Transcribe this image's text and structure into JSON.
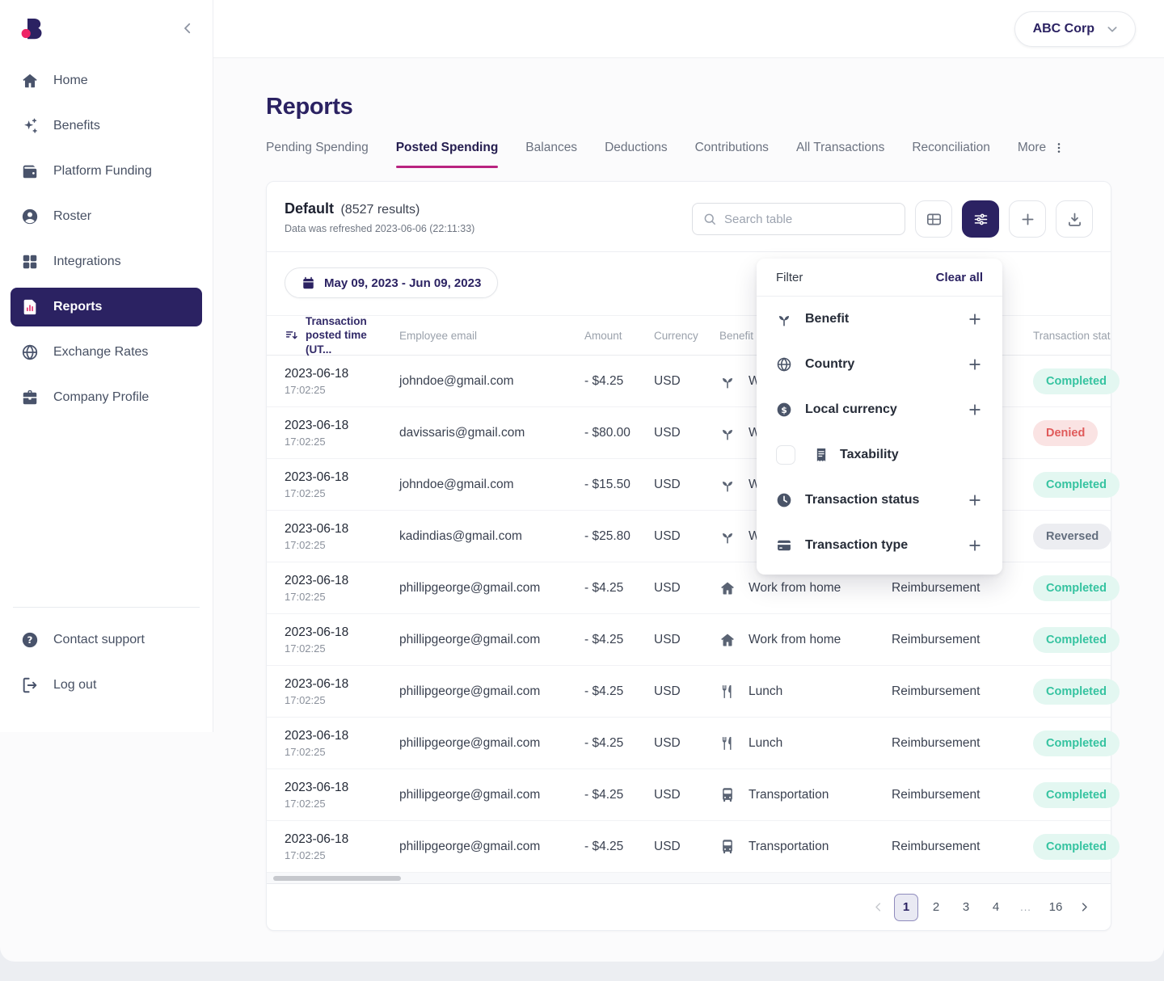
{
  "header": {
    "company": "ABC Corp"
  },
  "page": {
    "title": "Reports"
  },
  "sidebar": {
    "items": [
      {
        "icon": "home-icon",
        "label": "Home"
      },
      {
        "icon": "sparkles-icon",
        "label": "Benefits"
      },
      {
        "icon": "wallet-icon",
        "label": "Platform Funding"
      },
      {
        "icon": "user-circle-icon",
        "label": "Roster"
      },
      {
        "icon": "grid-icon",
        "label": "Integrations"
      },
      {
        "icon": "report-icon",
        "label": "Reports",
        "active": true
      },
      {
        "icon": "globe-icon",
        "label": "Exchange Rates"
      },
      {
        "icon": "briefcase-icon",
        "label": "Company Profile"
      }
    ],
    "footer_items": [
      {
        "icon": "help-icon",
        "label": "Contact support"
      },
      {
        "icon": "logout-icon",
        "label": "Log out"
      }
    ]
  },
  "tabs": [
    {
      "label": "Pending Spending"
    },
    {
      "label": "Posted Spending",
      "active": true
    },
    {
      "label": "Balances"
    },
    {
      "label": "Deductions"
    },
    {
      "label": "Contributions"
    },
    {
      "label": "All Transactions"
    },
    {
      "label": "Reconciliation"
    },
    {
      "label": "More",
      "icon": "kebab-icon"
    }
  ],
  "report": {
    "name": "Default",
    "results": "(8527 results)",
    "refreshed": "Data was refreshed 2023-06-06 (22:11:33)",
    "search_placeholder": "Search table",
    "date_range": "May 09, 2023 - Jun 09, 2023"
  },
  "filter_panel": {
    "title": "Filter",
    "clear": "Clear all",
    "items": [
      {
        "icon": "seedling-icon",
        "label": "Benefit",
        "plus": true
      },
      {
        "icon": "globe-icon",
        "label": "Country",
        "plus": true
      },
      {
        "icon": "dollar-circle-icon",
        "label": "Local currency",
        "plus": true
      },
      {
        "icon": "receipt-icon",
        "label": "Taxability",
        "checkbox": true
      },
      {
        "icon": "clock-icon",
        "label": "Transaction status",
        "plus": true
      },
      {
        "icon": "credit-card-icon",
        "label": "Transaction type",
        "plus": true
      }
    ]
  },
  "table": {
    "columns": [
      {
        "label": "Transaction posted time (UT...",
        "sort": true
      },
      {
        "label": "Employee email"
      },
      {
        "label": "Amount"
      },
      {
        "label": "Currency"
      },
      {
        "label": "Benefit name"
      },
      {
        "label": ""
      },
      {
        "label": "Transaction status"
      }
    ],
    "rows": [
      {
        "date": "2023-06-18",
        "time": "17:02:25",
        "email": "johndoe@gmail.com",
        "amount": "- $4.25",
        "currency": "USD",
        "benefit_icon": "seedling-icon",
        "benefit": "W",
        "type": "",
        "status": "Completed"
      },
      {
        "date": "2023-06-18",
        "time": "17:02:25",
        "email": "davissaris@gmail.com",
        "amount": "- $80.00",
        "currency": "USD",
        "benefit_icon": "seedling-icon",
        "benefit": "W",
        "type": "",
        "status": "Denied"
      },
      {
        "date": "2023-06-18",
        "time": "17:02:25",
        "email": "johndoe@gmail.com",
        "amount": "- $15.50",
        "currency": "USD",
        "benefit_icon": "seedling-icon",
        "benefit": "W",
        "type": "",
        "status": "Completed"
      },
      {
        "date": "2023-06-18",
        "time": "17:02:25",
        "email": "kadindias@gmail.com",
        "amount": "- $25.80",
        "currency": "USD",
        "benefit_icon": "seedling-icon",
        "benefit": "W",
        "type": "",
        "status": "Reversed"
      },
      {
        "date": "2023-06-18",
        "time": "17:02:25",
        "email": "phillipgeorge@gmail.com",
        "amount": "- $4.25",
        "currency": "USD",
        "benefit_icon": "home-icon",
        "benefit": "Work from home",
        "type": "Reimbursement",
        "status": "Completed"
      },
      {
        "date": "2023-06-18",
        "time": "17:02:25",
        "email": "phillipgeorge@gmail.com",
        "amount": "- $4.25",
        "currency": "USD",
        "benefit_icon": "home-icon",
        "benefit": "Work from home",
        "type": "Reimbursement",
        "status": "Completed"
      },
      {
        "date": "2023-06-18",
        "time": "17:02:25",
        "email": "phillipgeorge@gmail.com",
        "amount": "- $4.25",
        "currency": "USD",
        "benefit_icon": "utensils-icon",
        "benefit": "Lunch",
        "type": "Reimbursement",
        "status": "Completed"
      },
      {
        "date": "2023-06-18",
        "time": "17:02:25",
        "email": "phillipgeorge@gmail.com",
        "amount": "- $4.25",
        "currency": "USD",
        "benefit_icon": "utensils-icon",
        "benefit": "Lunch",
        "type": "Reimbursement",
        "status": "Completed"
      },
      {
        "date": "2023-06-18",
        "time": "17:02:25",
        "email": "phillipgeorge@gmail.com",
        "amount": "- $4.25",
        "currency": "USD",
        "benefit_icon": "bus-icon",
        "benefit": "Transportation",
        "type": "Reimbursement",
        "status": "Completed"
      },
      {
        "date": "2023-06-18",
        "time": "17:02:25",
        "email": "phillipgeorge@gmail.com",
        "amount": "- $4.25",
        "currency": "USD",
        "benefit_icon": "bus-icon",
        "benefit": "Transportation",
        "type": "Reimbursement",
        "status": "Completed"
      }
    ]
  },
  "pagination": {
    "pages": [
      {
        "label": "1",
        "active": true
      },
      {
        "label": "2"
      },
      {
        "label": "3"
      },
      {
        "label": "4"
      },
      {
        "label": "...",
        "dots": true
      },
      {
        "label": "16"
      }
    ]
  },
  "colors": {
    "brand_indigo": "#2b2262",
    "brand_pink": "#ee2366",
    "tab_underline": "#b92380",
    "status_completed": "#35c3a0",
    "status_denied": "#e05a5a",
    "status_reversed": "#636e7e"
  }
}
